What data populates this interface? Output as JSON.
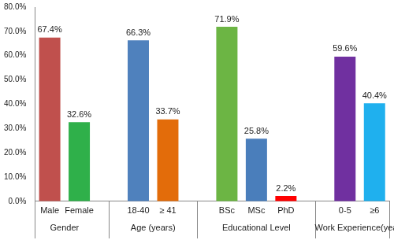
{
  "chart_data": {
    "type": "bar",
    "groups": [
      {
        "name": "Gender",
        "categories": [
          "Male",
          "Female"
        ],
        "values": [
          67.4,
          32.6
        ],
        "value_labels": [
          "67.4%",
          "32.6%"
        ],
        "colors": [
          "#c0504d",
          "#2fb04a"
        ]
      },
      {
        "name": "Age (years)",
        "categories": [
          "18-40",
          "≥ 41"
        ],
        "values": [
          66.3,
          33.7
        ],
        "value_labels": [
          "66.3%",
          "33.7%"
        ],
        "colors": [
          "#4f81bd",
          "#e36c0a"
        ]
      },
      {
        "name": "Educational Level",
        "categories": [
          "BSc",
          "MSc",
          "PhD"
        ],
        "values": [
          71.9,
          25.8,
          2.2
        ],
        "value_labels": [
          "71.9%",
          "25.8%",
          "2.2%"
        ],
        "colors": [
          "#6cb544",
          "#4a7ebb",
          "#ff0000"
        ]
      },
      {
        "name": "Work Experience(years",
        "categories": [
          "0-5",
          "≥6"
        ],
        "values": [
          59.6,
          40.4
        ],
        "value_labels": [
          "59.6%",
          "40.4%"
        ],
        "colors": [
          "#7030a0",
          "#1fb0ee"
        ]
      }
    ],
    "ylim": [
      0,
      80
    ],
    "yticks": [
      {
        "value": 0,
        "label": "0.0%"
      },
      {
        "value": 10,
        "label": "10.0%"
      },
      {
        "value": 20,
        "label": "20.0%"
      },
      {
        "value": 30,
        "label": "30.0%"
      },
      {
        "value": 40,
        "label": "40.0%"
      },
      {
        "value": 50,
        "label": "50.0%"
      },
      {
        "value": 60,
        "label": "60.0%"
      },
      {
        "value": 70,
        "label": "70.0%"
      },
      {
        "value": 80,
        "label": "80.0%"
      }
    ],
    "grid": false,
    "data_labels": true
  }
}
